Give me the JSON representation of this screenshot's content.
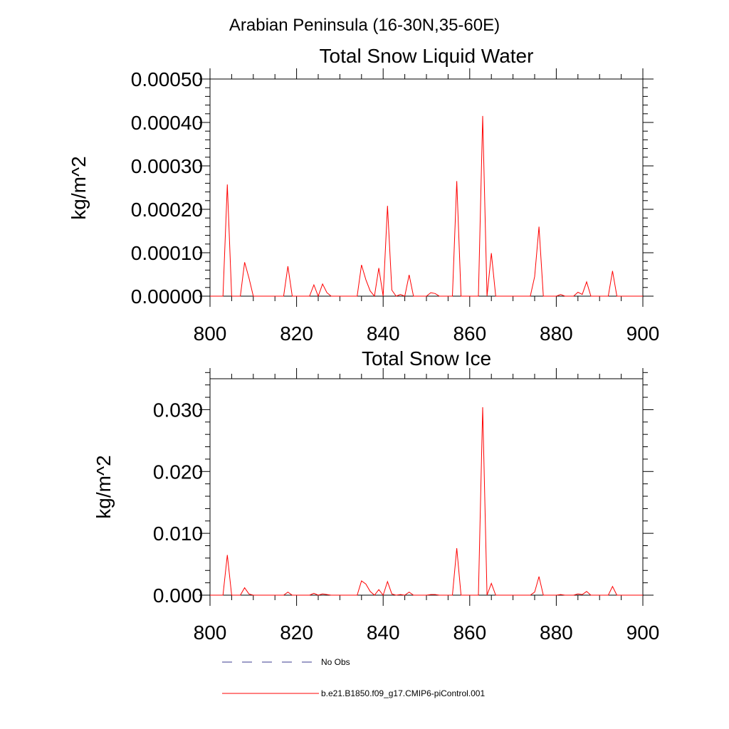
{
  "figure_title": "Arabian Peninsula (16-30N,35-60E)",
  "colors": {
    "series": "#ff0000",
    "legend_dashed": "#3b3b8f",
    "axis": "#000000"
  },
  "legend": [
    {
      "label": "No Obs",
      "style": "dashed",
      "color": "#3b3b8f"
    },
    {
      "label": "b.e21.B1850.f09_g17.CMIP6-piControl.001",
      "style": "solid",
      "color": "#ff0000"
    }
  ],
  "chart_data": [
    {
      "type": "line",
      "title": "Total Snow Liquid Water",
      "xlabel": "",
      "ylabel": "kg/m^2",
      "xlim": [
        800,
        900
      ],
      "ylim": [
        0,
        0.0005
      ],
      "x_ticks": [
        800,
        820,
        840,
        860,
        880,
        900
      ],
      "x_tick_labels": [
        "800",
        "820",
        "840",
        "860",
        "880",
        "900"
      ],
      "y_ticks": [
        0,
        0.0001,
        0.0002,
        0.0003,
        0.0004,
        0.0005
      ],
      "y_tick_labels": [
        "0.00000",
        "0.00010",
        "0.00020",
        "0.00030",
        "0.00040",
        "0.00050"
      ],
      "grid": false,
      "series": [
        {
          "name": "b.e21.B1850.f09_g17.CMIP6-piControl.001",
          "x": [
            800,
            801,
            802,
            803,
            804,
            805,
            806,
            807,
            808,
            809,
            810,
            811,
            812,
            813,
            814,
            815,
            816,
            817,
            818,
            819,
            820,
            821,
            822,
            823,
            824,
            825,
            826,
            827,
            828,
            829,
            830,
            831,
            832,
            833,
            834,
            835,
            836,
            837,
            838,
            839,
            840,
            841,
            842,
            843,
            844,
            845,
            846,
            847,
            848,
            849,
            850,
            851,
            852,
            853,
            854,
            855,
            856,
            857,
            858,
            859,
            860,
            861,
            862,
            863,
            864,
            865,
            866,
            867,
            868,
            869,
            870,
            871,
            872,
            873,
            874,
            875,
            876,
            877,
            878,
            879,
            880,
            881,
            882,
            883,
            884,
            885,
            886,
            887,
            888,
            889,
            890,
            891,
            892,
            893,
            894,
            895,
            896,
            897,
            898,
            899,
            900
          ],
          "y": [
            0,
            0,
            0,
            0,
            0.000257,
            0,
            0,
            0,
            7.8e-05,
            4.2e-05,
            0,
            0,
            0,
            0,
            0,
            0,
            0,
            0,
            6.9e-05,
            0,
            0,
            0,
            0,
            0,
            2.6e-05,
            0,
            2.8e-05,
            8e-06,
            0,
            0,
            0,
            0,
            0,
            0,
            0,
            7.2e-05,
            3.8e-05,
            1.2e-05,
            0,
            6.5e-05,
            0,
            0.000208,
            1.4e-05,
            0,
            4e-06,
            0,
            4.9e-05,
            0,
            0,
            0,
            0,
            8e-06,
            6e-06,
            0,
            0,
            0,
            0,
            0.000265,
            0,
            0,
            0,
            0,
            0,
            0.000415,
            0,
            9.9e-05,
            0,
            0,
            0,
            0,
            0,
            0,
            0,
            0,
            0,
            4.5e-05,
            0.00016,
            0,
            0,
            0,
            0,
            4e-06,
            0,
            0,
            0,
            9e-06,
            4e-06,
            3.3e-05,
            0,
            0,
            0,
            0,
            0,
            5.8e-05,
            0,
            0,
            0,
            0,
            0,
            0,
            0
          ]
        }
      ]
    },
    {
      "type": "line",
      "title": "Total Snow Ice",
      "xlabel": "",
      "ylabel": "kg/m^2",
      "xlim": [
        800,
        900
      ],
      "ylim": [
        0,
        0.035
      ],
      "x_ticks": [
        800,
        820,
        840,
        860,
        880,
        900
      ],
      "x_tick_labels": [
        "800",
        "820",
        "840",
        "860",
        "880",
        "900"
      ],
      "y_ticks": [
        0,
        0.01,
        0.02,
        0.03
      ],
      "y_tick_labels": [
        "0.000",
        "0.010",
        "0.020",
        "0.030"
      ],
      "grid": false,
      "series": [
        {
          "name": "b.e21.B1850.f09_g17.CMIP6-piControl.001",
          "x": [
            800,
            801,
            802,
            803,
            804,
            805,
            806,
            807,
            808,
            809,
            810,
            811,
            812,
            813,
            814,
            815,
            816,
            817,
            818,
            819,
            820,
            821,
            822,
            823,
            824,
            825,
            826,
            827,
            828,
            829,
            830,
            831,
            832,
            833,
            834,
            835,
            836,
            837,
            838,
            839,
            840,
            841,
            842,
            843,
            844,
            845,
            846,
            847,
            848,
            849,
            850,
            851,
            852,
            853,
            854,
            855,
            856,
            857,
            858,
            859,
            860,
            861,
            862,
            863,
            864,
            865,
            866,
            867,
            868,
            869,
            870,
            871,
            872,
            873,
            874,
            875,
            876,
            877,
            878,
            879,
            880,
            881,
            882,
            883,
            884,
            885,
            886,
            887,
            888,
            889,
            890,
            891,
            892,
            893,
            894,
            895,
            896,
            897,
            898,
            899,
            900
          ],
          "y": [
            0,
            0,
            0,
            0,
            0.0065,
            0,
            0,
            0,
            0.0012,
            0.0002,
            0,
            0,
            0,
            0,
            0,
            0,
            0,
            0,
            0.0005,
            0,
            0,
            0,
            0,
            0,
            0.0003,
            0,
            0.0002,
            0.0001,
            0,
            0,
            0,
            0,
            0,
            0,
            0,
            0.0023,
            0.0018,
            0.0006,
            0,
            0.0009,
            0,
            0.0022,
            0.0002,
            0,
            0.0001,
            0,
            0.0005,
            0,
            0,
            0,
            0,
            0.0001,
            0.0001,
            0,
            0,
            0,
            0,
            0.0076,
            0,
            0,
            0,
            0,
            0,
            0.0304,
            0,
            0.0019,
            0,
            0,
            0,
            0,
            0,
            0,
            0,
            0,
            0,
            0.0005,
            0.003,
            0,
            0,
            0,
            0,
            0.0001,
            0,
            0,
            0,
            0.0002,
            0.0001,
            0.0006,
            0,
            0,
            0,
            0,
            0,
            0.0014,
            0,
            0,
            0,
            0,
            0,
            0,
            0
          ]
        }
      ]
    }
  ]
}
